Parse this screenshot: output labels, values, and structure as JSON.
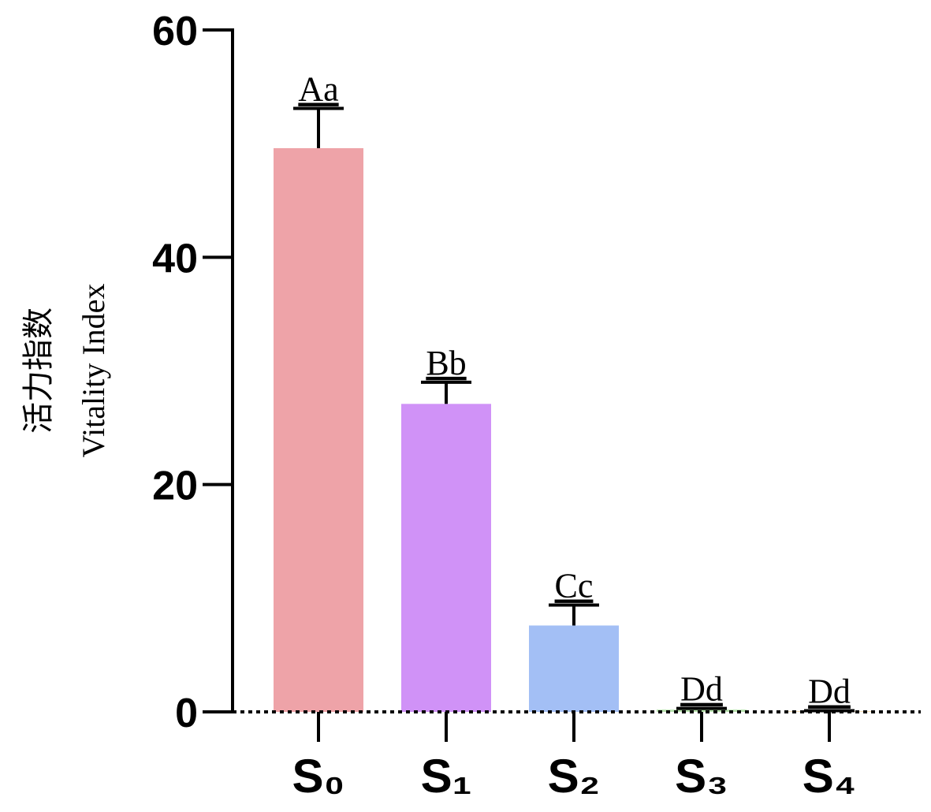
{
  "chart_data": {
    "type": "bar",
    "y_label_lines": [
      "活力指数",
      "Vitality Index"
    ],
    "categories": [
      "S₀",
      "S₁",
      "S₂",
      "S₃",
      "S₄"
    ],
    "values": [
      49.6,
      27.1,
      7.6,
      0.2,
      0.05
    ],
    "errors": [
      3.5,
      1.9,
      1.8,
      0.1,
      0.05
    ],
    "annotations": [
      "Aa",
      "Bb",
      "Cc",
      "Dd",
      "Dd"
    ],
    "colors": [
      "#eea3a8",
      "#d092f7",
      "#a3bff5",
      "#b9e3b0",
      "#f2d39b"
    ],
    "ylim": [
      0,
      60
    ],
    "yticks": [
      0,
      20,
      40,
      60
    ]
  }
}
